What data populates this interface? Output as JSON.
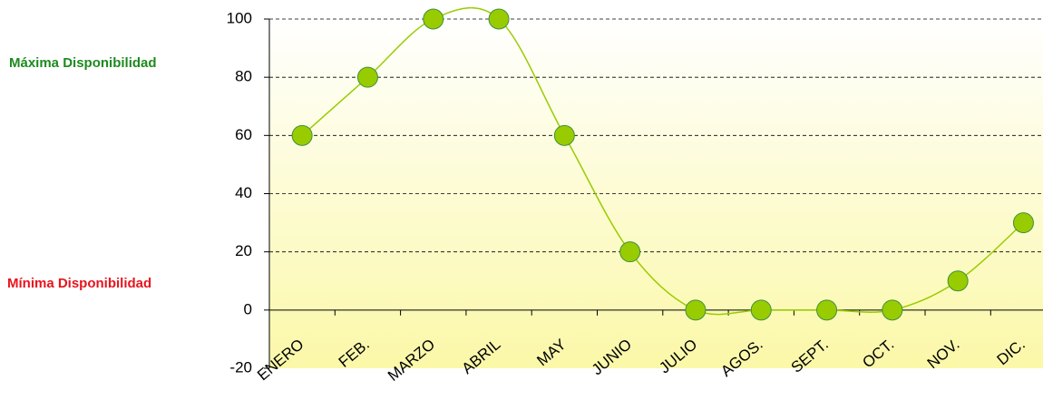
{
  "chart_data": {
    "type": "line",
    "categories": [
      "ENERO",
      "FEB.",
      "MARZO",
      "ABRIL",
      "MAY",
      "JUNIO",
      "JULIO",
      "AGOS.",
      "SEPT.",
      "OCT.",
      "NOV.",
      "DIC."
    ],
    "values": [
      60,
      80,
      100,
      100,
      60,
      20,
      0,
      0,
      0,
      0,
      10,
      30
    ],
    "color": "#99cc00",
    "marker_color": "#99cc00",
    "smooth": true,
    "grid": true,
    "ylim": [
      -20,
      100
    ],
    "yticks": [
      -20,
      0,
      20,
      40,
      60,
      80,
      100
    ],
    "annotations": [
      {
        "text": "Máxima Disponibilidad",
        "color": "#1e8a1e"
      },
      {
        "text": "Mínima Disponibilidad",
        "color": "#e8141e"
      }
    ]
  }
}
